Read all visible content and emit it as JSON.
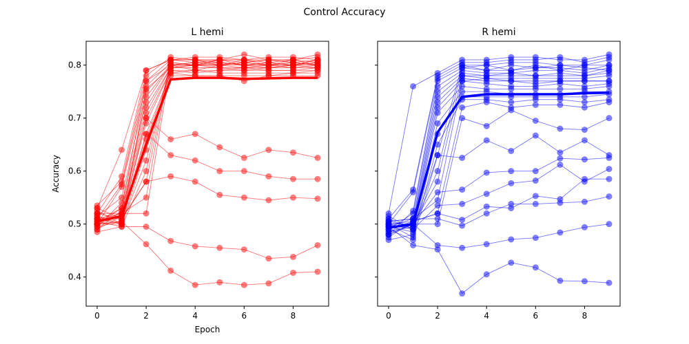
{
  "figure": {
    "suptitle": "Control Accuracy"
  },
  "chart_data": [
    {
      "type": "line",
      "title": "L hemi",
      "xlabel": "Epoch",
      "ylabel": "Accuracy",
      "xlim": [
        -0.45,
        9.45
      ],
      "ylim": [
        0.345,
        0.845
      ],
      "xticks": [
        0,
        2,
        4,
        6,
        8
      ],
      "yticks": [
        0.4,
        0.5,
        0.6,
        0.7,
        0.8
      ],
      "xtick_labels": [
        "0",
        "2",
        "4",
        "6",
        "8"
      ],
      "ytick_labels": [
        "0.4",
        "0.5",
        "0.6",
        "0.7",
        "0.8"
      ],
      "show_ytick_labels": true,
      "grid": false,
      "color": "#ff0000",
      "x": [
        0,
        1,
        2,
        3,
        4,
        5,
        6,
        7,
        8,
        9
      ],
      "mean": {
        "values": [
          0.505,
          0.515,
          0.65,
          0.773,
          0.776,
          0.776,
          0.774,
          0.775,
          0.776,
          0.776
        ]
      },
      "series": [
        {
          "values": [
            0.53,
            0.64,
            0.79,
            0.81,
            0.81,
            0.81,
            0.82,
            0.81,
            0.81,
            0.82
          ]
        },
        {
          "values": [
            0.52,
            0.59,
            0.79,
            0.81,
            0.815,
            0.815,
            0.81,
            0.815,
            0.815,
            0.81
          ]
        },
        {
          "values": [
            0.535,
            0.58,
            0.78,
            0.815,
            0.81,
            0.81,
            0.81,
            0.81,
            0.81,
            0.815
          ]
        },
        {
          "values": [
            0.51,
            0.575,
            0.77,
            0.81,
            0.805,
            0.81,
            0.805,
            0.81,
            0.805,
            0.81
          ]
        },
        {
          "values": [
            0.5,
            0.57,
            0.76,
            0.805,
            0.8,
            0.8,
            0.81,
            0.805,
            0.8,
            0.805
          ]
        },
        {
          "values": [
            0.515,
            0.55,
            0.75,
            0.8,
            0.8,
            0.805,
            0.8,
            0.8,
            0.805,
            0.8
          ]
        },
        {
          "values": [
            0.495,
            0.54,
            0.73,
            0.8,
            0.8,
            0.8,
            0.8,
            0.795,
            0.8,
            0.8
          ]
        },
        {
          "values": [
            0.505,
            0.53,
            0.72,
            0.795,
            0.795,
            0.795,
            0.795,
            0.8,
            0.795,
            0.8
          ]
        },
        {
          "values": [
            0.49,
            0.525,
            0.71,
            0.795,
            0.8,
            0.795,
            0.79,
            0.795,
            0.795,
            0.795
          ]
        },
        {
          "values": [
            0.52,
            0.52,
            0.7,
            0.79,
            0.79,
            0.79,
            0.795,
            0.79,
            0.79,
            0.795
          ]
        },
        {
          "values": [
            0.5,
            0.515,
            0.69,
            0.79,
            0.785,
            0.79,
            0.79,
            0.79,
            0.79,
            0.79
          ]
        },
        {
          "values": [
            0.51,
            0.51,
            0.67,
            0.785,
            0.79,
            0.785,
            0.785,
            0.785,
            0.785,
            0.79
          ]
        },
        {
          "values": [
            0.495,
            0.505,
            0.66,
            0.785,
            0.78,
            0.78,
            0.78,
            0.78,
            0.785,
            0.785
          ]
        },
        {
          "values": [
            0.525,
            0.5,
            0.64,
            0.78,
            0.78,
            0.78,
            0.77,
            0.78,
            0.78,
            0.78
          ]
        },
        {
          "values": [
            0.5,
            0.5,
            0.62,
            0.8,
            0.805,
            0.8,
            0.805,
            0.8,
            0.8,
            0.805
          ]
        },
        {
          "values": [
            0.485,
            0.495,
            0.6,
            0.81,
            0.81,
            0.805,
            0.8,
            0.805,
            0.81,
            0.8
          ]
        },
        {
          "values": [
            0.53,
            0.51,
            0.58,
            0.805,
            0.8,
            0.81,
            0.81,
            0.8,
            0.8,
            0.81
          ]
        },
        {
          "values": [
            0.51,
            0.52,
            0.55,
            0.81,
            0.81,
            0.8,
            0.805,
            0.81,
            0.805,
            0.8
          ]
        },
        {
          "values": [
            0.505,
            0.52,
            0.52,
            0.8,
            0.79,
            0.8,
            0.795,
            0.795,
            0.8,
            0.795
          ]
        },
        {
          "values": [
            0.5,
            0.53,
            0.77,
            0.8,
            0.805,
            0.805,
            0.8,
            0.805,
            0.8,
            0.81
          ]
        },
        {
          "values": [
            0.515,
            0.5,
            0.755,
            0.795,
            0.8,
            0.8,
            0.805,
            0.8,
            0.805,
            0.8
          ]
        },
        {
          "values": [
            0.49,
            0.515,
            0.74,
            0.8,
            0.8,
            0.81,
            0.8,
            0.8,
            0.81,
            0.805
          ]
        },
        {
          "values": [
            0.5,
            0.505,
            0.7,
            0.66,
            0.67,
            0.645,
            0.625,
            0.64,
            0.635,
            0.625
          ]
        },
        {
          "values": [
            0.51,
            0.5,
            0.67,
            0.63,
            0.62,
            0.6,
            0.6,
            0.59,
            0.585,
            0.585
          ]
        },
        {
          "values": [
            0.52,
            0.51,
            0.58,
            0.59,
            0.58,
            0.555,
            0.55,
            0.545,
            0.55,
            0.548
          ]
        },
        {
          "values": [
            0.505,
            0.495,
            0.495,
            0.468,
            0.458,
            0.455,
            0.452,
            0.435,
            0.438,
            0.46
          ]
        },
        {
          "values": [
            0.5,
            0.505,
            0.462,
            0.412,
            0.385,
            0.39,
            0.385,
            0.388,
            0.408,
            0.41
          ]
        }
      ]
    },
    {
      "type": "line",
      "title": "R hemi",
      "xlabel": "",
      "ylabel": "",
      "xlim": [
        -0.45,
        9.45
      ],
      "ylim": [
        0.345,
        0.845
      ],
      "xticks": [
        0,
        2,
        4,
        6,
        8
      ],
      "yticks": [
        0.4,
        0.5,
        0.6,
        0.7,
        0.8
      ],
      "xtick_labels": [
        "0",
        "2",
        "4",
        "6",
        "8"
      ],
      "ytick_labels": [],
      "show_ytick_labels": false,
      "grid": false,
      "color": "#0000ff",
      "x": [
        0,
        1,
        2,
        3,
        4,
        5,
        6,
        7,
        8,
        9
      ],
      "mean": {
        "values": [
          0.493,
          0.5,
          0.673,
          0.74,
          0.745,
          0.745,
          0.745,
          0.745,
          0.747,
          0.748
        ]
      },
      "series": [
        {
          "values": [
            0.52,
            0.76,
            0.785,
            0.81,
            0.81,
            0.815,
            0.815,
            0.81,
            0.81,
            0.82
          ]
        },
        {
          "values": [
            0.51,
            0.565,
            0.78,
            0.805,
            0.805,
            0.81,
            0.81,
            0.815,
            0.805,
            0.815
          ]
        },
        {
          "values": [
            0.5,
            0.56,
            0.775,
            0.8,
            0.8,
            0.805,
            0.805,
            0.8,
            0.8,
            0.81
          ]
        },
        {
          "values": [
            0.48,
            0.525,
            0.77,
            0.795,
            0.79,
            0.79,
            0.795,
            0.795,
            0.79,
            0.8
          ]
        },
        {
          "values": [
            0.49,
            0.52,
            0.76,
            0.79,
            0.785,
            0.785,
            0.79,
            0.79,
            0.785,
            0.795
          ]
        },
        {
          "values": [
            0.505,
            0.51,
            0.75,
            0.785,
            0.78,
            0.78,
            0.78,
            0.78,
            0.78,
            0.79
          ]
        },
        {
          "values": [
            0.475,
            0.505,
            0.74,
            0.78,
            0.775,
            0.775,
            0.775,
            0.775,
            0.775,
            0.78
          ]
        },
        {
          "values": [
            0.5,
            0.5,
            0.73,
            0.775,
            0.77,
            0.77,
            0.765,
            0.77,
            0.77,
            0.77
          ]
        },
        {
          "values": [
            0.485,
            0.495,
            0.72,
            0.77,
            0.765,
            0.76,
            0.76,
            0.765,
            0.76,
            0.765
          ]
        },
        {
          "values": [
            0.515,
            0.49,
            0.71,
            0.76,
            0.755,
            0.755,
            0.755,
            0.755,
            0.755,
            0.76
          ]
        },
        {
          "values": [
            0.495,
            0.485,
            0.69,
            0.75,
            0.75,
            0.745,
            0.745,
            0.745,
            0.75,
            0.75
          ]
        },
        {
          "values": [
            0.47,
            0.48,
            0.67,
            0.74,
            0.74,
            0.74,
            0.74,
            0.74,
            0.74,
            0.745
          ]
        },
        {
          "values": [
            0.5,
            0.475,
            0.65,
            0.735,
            0.735,
            0.73,
            0.735,
            0.735,
            0.73,
            0.735
          ]
        },
        {
          "values": [
            0.49,
            0.47,
            0.63,
            0.8,
            0.79,
            0.8,
            0.795,
            0.8,
            0.795,
            0.79
          ]
        },
        {
          "values": [
            0.505,
            0.495,
            0.6,
            0.795,
            0.8,
            0.79,
            0.8,
            0.79,
            0.8,
            0.8
          ]
        },
        {
          "values": [
            0.48,
            0.5,
            0.58,
            0.78,
            0.78,
            0.785,
            0.78,
            0.785,
            0.78,
            0.785
          ]
        },
        {
          "values": [
            0.495,
            0.51,
            0.545,
            0.77,
            0.775,
            0.77,
            0.77,
            0.77,
            0.77,
            0.77
          ]
        },
        {
          "values": [
            0.5,
            0.505,
            0.52,
            0.72,
            0.73,
            0.72,
            0.725,
            0.725,
            0.72,
            0.73
          ]
        },
        {
          "values": [
            0.485,
            0.5,
            0.5,
            0.7,
            0.685,
            0.715,
            0.695,
            0.68,
            0.678,
            0.7
          ]
        },
        {
          "values": [
            0.51,
            0.49,
            0.63,
            0.625,
            0.658,
            0.638,
            0.667,
            0.635,
            0.658,
            0.63
          ]
        },
        {
          "values": [
            0.495,
            0.5,
            0.56,
            0.565,
            0.597,
            0.6,
            0.6,
            0.624,
            0.622,
            0.625
          ]
        },
        {
          "values": [
            0.5,
            0.49,
            0.535,
            0.538,
            0.557,
            0.577,
            0.582,
            0.612,
            0.58,
            0.604
          ]
        },
        {
          "values": [
            0.49,
            0.505,
            0.52,
            0.508,
            0.533,
            0.53,
            0.553,
            0.547,
            0.585,
            0.585
          ]
        },
        {
          "values": [
            0.505,
            0.51,
            0.51,
            0.497,
            0.52,
            0.538,
            0.538,
            0.54,
            0.542,
            0.552
          ]
        },
        {
          "values": [
            0.48,
            0.5,
            0.46,
            0.455,
            0.462,
            0.471,
            0.474,
            0.484,
            0.494,
            0.5
          ]
        },
        {
          "values": [
            0.495,
            0.46,
            0.452,
            0.369,
            0.405,
            0.427,
            0.418,
            0.393,
            0.392,
            0.389
          ]
        }
      ]
    }
  ]
}
